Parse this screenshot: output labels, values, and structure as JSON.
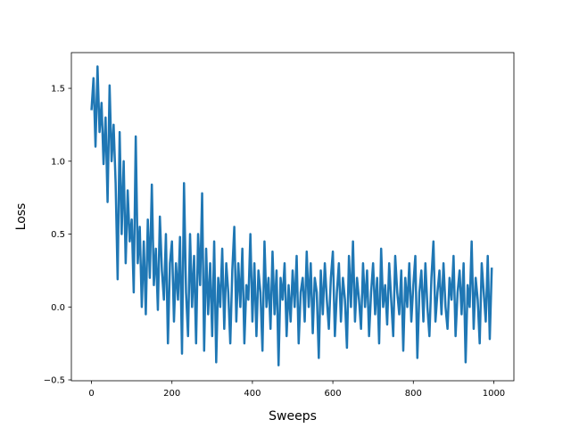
{
  "chart_data": {
    "type": "line",
    "xlabel": "Sweeps",
    "ylabel": "Loss",
    "x": [
      0,
      5,
      10,
      15,
      20,
      25,
      30,
      35,
      40,
      45,
      50,
      55,
      60,
      65,
      70,
      75,
      80,
      85,
      90,
      95,
      100,
      105,
      110,
      115,
      120,
      125,
      130,
      135,
      140,
      145,
      150,
      155,
      160,
      165,
      170,
      175,
      180,
      185,
      190,
      195,
      200,
      205,
      210,
      215,
      220,
      225,
      230,
      235,
      240,
      245,
      250,
      255,
      260,
      265,
      270,
      275,
      280,
      285,
      290,
      295,
      300,
      305,
      310,
      315,
      320,
      325,
      330,
      335,
      340,
      345,
      350,
      355,
      360,
      365,
      370,
      375,
      380,
      385,
      390,
      395,
      400,
      405,
      410,
      415,
      420,
      425,
      430,
      435,
      440,
      445,
      450,
      455,
      460,
      465,
      470,
      475,
      480,
      485,
      490,
      495,
      500,
      505,
      510,
      515,
      520,
      525,
      530,
      535,
      540,
      545,
      550,
      555,
      560,
      565,
      570,
      575,
      580,
      585,
      590,
      595,
      600,
      605,
      610,
      615,
      620,
      625,
      630,
      635,
      640,
      645,
      650,
      655,
      660,
      665,
      670,
      675,
      680,
      685,
      690,
      695,
      700,
      705,
      710,
      715,
      720,
      725,
      730,
      735,
      740,
      745,
      750,
      755,
      760,
      765,
      770,
      775,
      780,
      785,
      790,
      795,
      800,
      805,
      810,
      815,
      820,
      825,
      830,
      835,
      840,
      845,
      850,
      855,
      860,
      865,
      870,
      875,
      880,
      885,
      890,
      895,
      900,
      905,
      910,
      915,
      920,
      925,
      930,
      935,
      940,
      945,
      950,
      955,
      960,
      965,
      970,
      975,
      980,
      985,
      990,
      995
    ],
    "series": [
      {
        "color": "#1f77b4",
        "values": [
          1.35,
          1.57,
          1.1,
          1.65,
          1.2,
          1.4,
          0.98,
          1.3,
          0.72,
          1.52,
          1.0,
          1.25,
          0.85,
          0.19,
          1.2,
          0.5,
          1.0,
          0.3,
          0.8,
          0.45,
          0.6,
          0.1,
          1.17,
          0.3,
          0.55,
          0.0,
          0.45,
          -0.05,
          0.6,
          0.2,
          0.84,
          0.15,
          0.4,
          -0.02,
          0.62,
          0.25,
          0.05,
          0.5,
          -0.25,
          0.3,
          0.45,
          -0.1,
          0.3,
          0.05,
          0.48,
          -0.32,
          0.85,
          0.1,
          -0.2,
          0.5,
          0.0,
          0.35,
          -0.25,
          0.5,
          0.15,
          0.78,
          -0.3,
          0.4,
          -0.05,
          0.3,
          -0.2,
          0.45,
          -0.38,
          0.2,
          0.0,
          0.4,
          -0.15,
          0.3,
          0.1,
          -0.25,
          0.25,
          0.55,
          -0.1,
          0.3,
          0.0,
          0.4,
          -0.25,
          0.15,
          0.05,
          0.5,
          -0.1,
          0.3,
          -0.2,
          0.25,
          0.1,
          -0.3,
          0.45,
          0.0,
          0.2,
          -0.15,
          0.38,
          -0.05,
          0.25,
          -0.4,
          0.2,
          0.05,
          0.3,
          -0.2,
          0.15,
          -0.1,
          0.25,
          0.0,
          0.35,
          -0.25,
          0.1,
          0.2,
          -0.1,
          0.38,
          0.0,
          0.3,
          -0.18,
          0.2,
          0.1,
          -0.35,
          0.25,
          -0.05,
          0.3,
          0.05,
          -0.15,
          0.2,
          0.38,
          -0.2,
          0.1,
          0.3,
          -0.1,
          0.2,
          0.05,
          -0.28,
          0.35,
          0.0,
          0.45,
          -0.1,
          0.2,
          0.05,
          -0.15,
          0.3,
          0.0,
          0.25,
          -0.2,
          0.1,
          0.3,
          -0.05,
          0.2,
          -0.25,
          0.4,
          0.0,
          0.15,
          -0.12,
          0.3,
          0.05,
          -0.2,
          0.35,
          0.1,
          -0.05,
          0.25,
          -0.3,
          0.2,
          0.0,
          0.3,
          -0.1,
          0.15,
          0.35,
          -0.35,
          0.1,
          0.25,
          -0.1,
          0.3,
          0.0,
          -0.2,
          0.2,
          0.45,
          -0.1,
          0.1,
          0.25,
          -0.05,
          0.3,
          0.0,
          -0.15,
          0.2,
          0.05,
          0.35,
          -0.2,
          0.1,
          0.25,
          -0.05,
          0.3,
          -0.38,
          0.15,
          0.0,
          0.45,
          -0.15,
          0.2,
          0.05,
          -0.25,
          0.3,
          0.1,
          -0.1,
          0.35,
          -0.22,
          0.27
        ]
      }
    ],
    "xlim": [
      -50,
      1050
    ],
    "ylim": [
      -0.506,
      1.745
    ],
    "xticks": [
      0,
      200,
      400,
      600,
      800,
      1000
    ],
    "yticks": [
      {
        "value": -0.5,
        "label": "−0.5"
      },
      {
        "value": 0,
        "label": "0.0"
      },
      0.5,
      {
        "value": 1,
        "label": "1.0"
      },
      1.5
    ]
  }
}
